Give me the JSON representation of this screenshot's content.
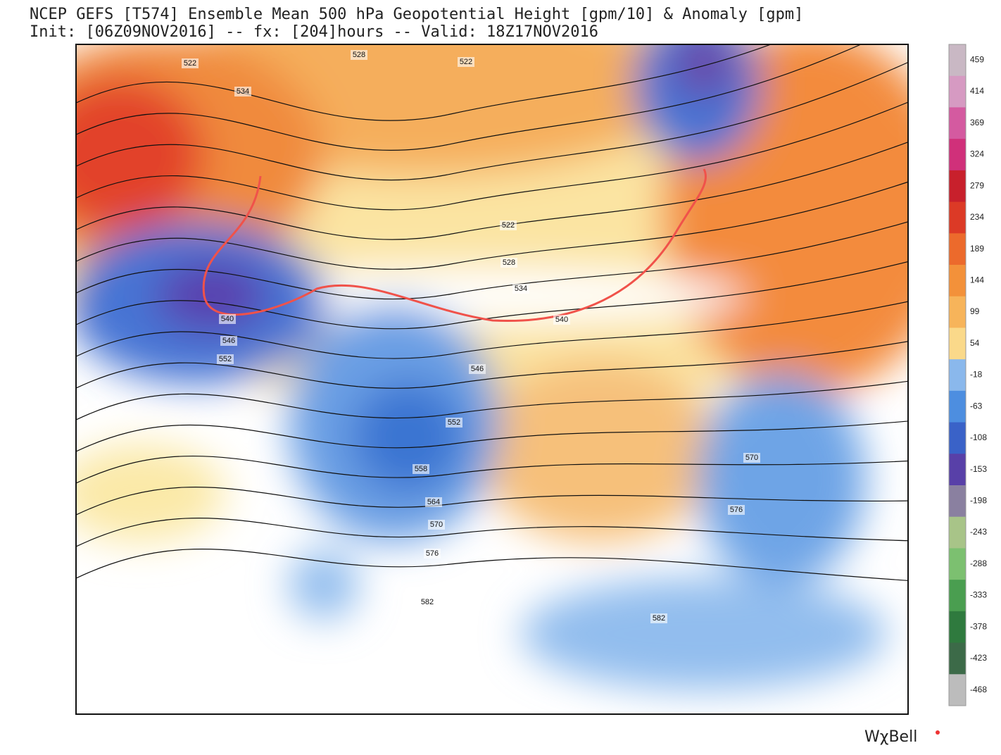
{
  "header": {
    "title": "NCEP GEFS [T574] Ensemble Mean 500 hPa Geopotential Height [gpm/10] & Anomaly [gpm]",
    "subtitle": "Init: [06Z09NOV2016] -- fx: [204]hours -- Valid: 18Z17NOV2016"
  },
  "contour_labels": [
    "522",
    "528",
    "522",
    "534",
    "540",
    "546",
    "552",
    "522",
    "528",
    "534",
    "540",
    "546",
    "552",
    "558",
    "564",
    "570",
    "576",
    "582",
    "570",
    "576",
    "582"
  ],
  "colorbar": {
    "ticks": [
      459,
      414,
      369,
      324,
      279,
      234,
      189,
      144,
      99,
      54,
      -18,
      -63,
      -108,
      -153,
      -198,
      -243,
      -288,
      -333,
      -378,
      -423,
      -468
    ],
    "colors": [
      "#c9b8c4",
      "#d69ac2",
      "#d45aa0",
      "#d0307a",
      "#c8202c",
      "#dc3a26",
      "#ec6a2c",
      "#f3913a",
      "#f7b45a",
      "#fad98a",
      "#8ab8ec",
      "#4d8ee0",
      "#3a62c8",
      "#5840a8",
      "#8a80a0",
      "#a8c488",
      "#7cc070",
      "#4a9e50",
      "#2f7a3e",
      "#3c6a48",
      "#bcbcbc"
    ]
  },
  "branding": "WχBell"
}
